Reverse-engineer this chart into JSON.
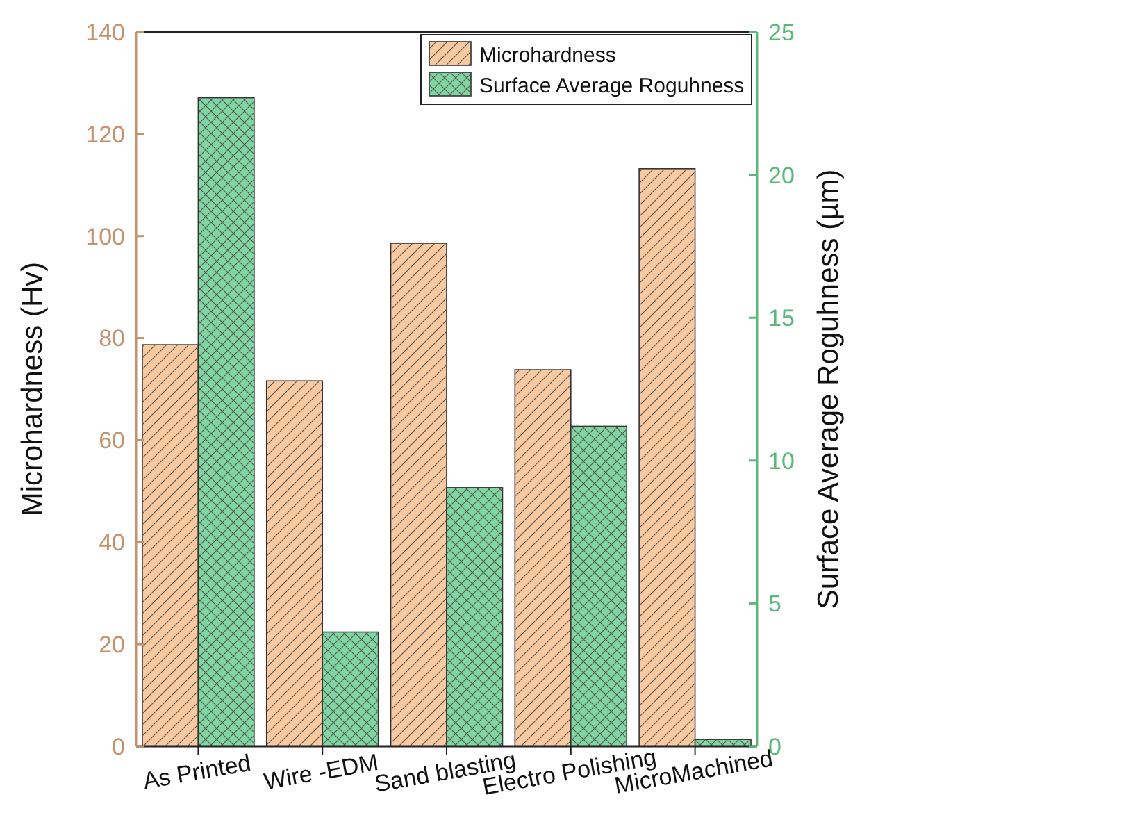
{
  "chart_data": {
    "type": "bar",
    "categories": [
      "As Printed",
      "Wire -EDM",
      "Sand blasting",
      "Electro Polishing",
      "MicroMachined"
    ],
    "ylabel": "Microhardness (Hv)",
    "y2label": "Surface Average Roguhness (µm)",
    "ylim": [
      0,
      140
    ],
    "yticks": [
      0,
      20,
      40,
      60,
      80,
      100,
      120,
      140
    ],
    "y2lim": [
      0,
      25
    ],
    "y2ticks": [
      0,
      5,
      10,
      15,
      20,
      25
    ],
    "legend": "top right",
    "grid": false,
    "series": [
      {
        "name": "Microhardness",
        "color": "#fbc9a0",
        "values": [
          78.7,
          71.6,
          98.6,
          73.8,
          113.2
        ]
      },
      {
        "name": "Surface Average Roguhness",
        "color": "#7fd6a0",
        "axis": "y2",
        "values": [
          22.7,
          4.0,
          9.05,
          11.2,
          0.24
        ]
      }
    ]
  }
}
